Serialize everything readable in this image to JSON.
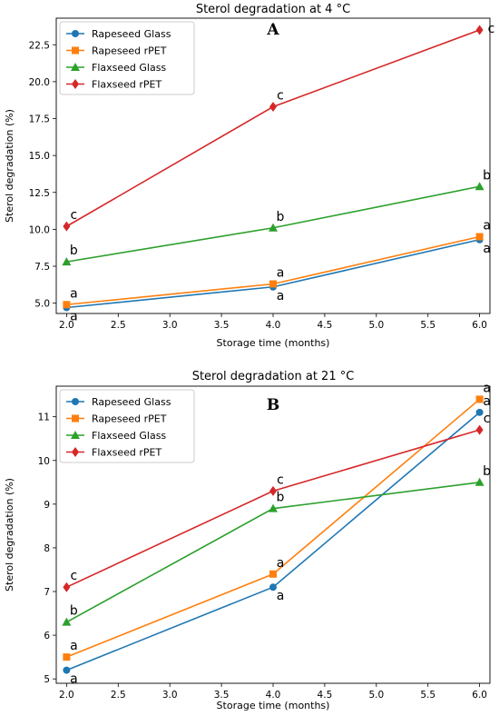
{
  "colors": {
    "Rapeseed Glass": "#1f77b4",
    "Rapeseed rPET": "#ff7f0e",
    "Flaxseed Glass": "#2ca02c",
    "Flaxseed rPET": "#d62728"
  },
  "chart_data": [
    {
      "type": "line",
      "title": "Sterol degradation at 4 °C",
      "panel_label": "A",
      "xlabel": "Storage time (months)",
      "ylabel": "Sterol degradation (%)",
      "xlim": [
        1.9,
        6.1
      ],
      "ylim": [
        4.3,
        24.3
      ],
      "xticks": [
        2.0,
        2.5,
        3.0,
        3.5,
        4.0,
        4.5,
        5.0,
        5.5,
        6.0
      ],
      "yticks": [
        5.0,
        7.5,
        10.0,
        12.5,
        15.0,
        17.5,
        20.0,
        22.5
      ],
      "tick_labels_x": [
        "2.0",
        "2.5",
        "3.0",
        "3.5",
        "4.0",
        "4.5",
        "5.0",
        "5.5",
        "6.0"
      ],
      "tick_labels_y": [
        "5.0",
        "7.5",
        "10.0",
        "12.5",
        "15.0",
        "17.5",
        "20.0",
        "22.5"
      ],
      "x": [
        2.0,
        4.0,
        6.0
      ],
      "grid": false,
      "legend": "top-left",
      "series": [
        {
          "name": "Rapeseed Glass",
          "marker": "circle",
          "values": [
            4.7,
            6.1,
            9.3
          ],
          "labels": [
            "a",
            "a",
            "a"
          ],
          "label_pos": [
            "below",
            "below",
            "below"
          ]
        },
        {
          "name": "Rapeseed rPET",
          "marker": "square",
          "values": [
            4.9,
            6.3,
            9.5
          ],
          "labels": [
            "a",
            "a",
            "a"
          ],
          "label_pos": [
            "above",
            "above",
            "above"
          ]
        },
        {
          "name": "Flaxseed Glass",
          "marker": "triangle",
          "values": [
            7.8,
            10.1,
            12.9
          ],
          "labels": [
            "b",
            "b",
            "b"
          ],
          "label_pos": [
            "above",
            "above",
            "above"
          ]
        },
        {
          "name": "Flaxseed rPET",
          "marker": "diamond",
          "values": [
            10.2,
            18.3,
            23.5
          ],
          "labels": [
            "c",
            "c",
            "c"
          ],
          "label_pos": [
            "above",
            "above",
            "right"
          ]
        }
      ]
    },
    {
      "type": "line",
      "title": "Sterol degradation at 21 °C",
      "panel_label": "B",
      "xlabel": "Storage time (months)",
      "ylabel": "Sterol degradation (%)",
      "xlim": [
        1.9,
        6.1
      ],
      "ylim": [
        4.9,
        11.7
      ],
      "xticks": [
        2.0,
        2.5,
        3.0,
        3.5,
        4.0,
        4.5,
        5.0,
        5.5,
        6.0
      ],
      "yticks": [
        5,
        6,
        7,
        8,
        9,
        10,
        11
      ],
      "tick_labels_x": [
        "2.0",
        "2.5",
        "3.0",
        "3.5",
        "4.0",
        "4.5",
        "5.0",
        "5.5",
        "6.0"
      ],
      "tick_labels_y": [
        "5",
        "6",
        "7",
        "8",
        "9",
        "10",
        "11"
      ],
      "x": [
        2.0,
        4.0,
        6.0
      ],
      "grid": false,
      "legend": "top-left",
      "series": [
        {
          "name": "Rapeseed Glass",
          "marker": "circle",
          "values": [
            5.2,
            7.1,
            11.1
          ],
          "labels": [
            "a",
            "a",
            "a"
          ],
          "label_pos": [
            "below",
            "below",
            "above"
          ]
        },
        {
          "name": "Rapeseed rPET",
          "marker": "square",
          "values": [
            5.5,
            7.4,
            11.4
          ],
          "labels": [
            "a",
            "a",
            "a"
          ],
          "label_pos": [
            "above",
            "above",
            "above"
          ]
        },
        {
          "name": "Flaxseed Glass",
          "marker": "triangle",
          "values": [
            6.3,
            8.9,
            9.5
          ],
          "labels": [
            "b",
            "b",
            "b"
          ],
          "label_pos": [
            "above",
            "above",
            "above"
          ]
        },
        {
          "name": "Flaxseed rPET",
          "marker": "diamond",
          "values": [
            7.1,
            9.3,
            10.7
          ],
          "labels": [
            "c",
            "c",
            "c"
          ],
          "label_pos": [
            "above",
            "above",
            "above"
          ]
        }
      ]
    }
  ]
}
